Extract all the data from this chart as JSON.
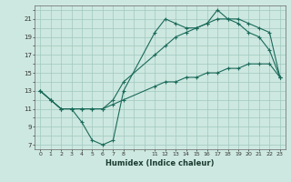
{
  "xlabel": "Humidex (Indice chaleur)",
  "bg_color": "#cde8e0",
  "grid_color": "#a0c8be",
  "line_color": "#1a6a5a",
  "xlim": [
    -0.5,
    23.5
  ],
  "ylim": [
    6.5,
    22.5
  ],
  "xticks": [
    0,
    1,
    2,
    3,
    4,
    5,
    6,
    7,
    8,
    11,
    12,
    13,
    14,
    15,
    16,
    17,
    18,
    19,
    20,
    21,
    22,
    23
  ],
  "yticks": [
    7,
    9,
    11,
    13,
    15,
    17,
    19,
    21
  ],
  "line1_x": [
    0,
    1,
    2,
    3,
    4,
    5,
    6,
    7,
    8,
    11,
    12,
    13,
    14,
    15,
    16,
    17,
    18,
    19,
    20,
    21,
    22,
    23
  ],
  "line1_y": [
    13,
    12,
    11,
    11,
    9.5,
    7.5,
    7,
    7.5,
    13,
    19.5,
    21,
    20.5,
    20,
    20,
    20.5,
    22,
    21,
    20.5,
    19.5,
    19,
    17.5,
    14.5
  ],
  "line2_x": [
    0,
    1,
    2,
    3,
    4,
    5,
    6,
    7,
    8,
    11,
    12,
    13,
    14,
    15,
    16,
    17,
    18,
    19,
    20,
    21,
    22,
    23
  ],
  "line2_y": [
    13,
    12,
    11,
    11,
    11,
    11,
    11,
    12,
    14,
    17,
    18,
    19,
    19.5,
    20,
    20.5,
    21,
    21,
    21,
    20.5,
    20,
    19.5,
    14.5
  ],
  "line3_x": [
    0,
    1,
    2,
    3,
    4,
    5,
    6,
    7,
    8,
    11,
    12,
    13,
    14,
    15,
    16,
    17,
    18,
    19,
    20,
    21,
    22,
    23
  ],
  "line3_y": [
    13,
    12,
    11,
    11,
    11,
    11,
    11,
    11.5,
    12,
    13.5,
    14,
    14,
    14.5,
    14.5,
    15,
    15,
    15.5,
    15.5,
    16,
    16,
    16,
    14.5
  ]
}
